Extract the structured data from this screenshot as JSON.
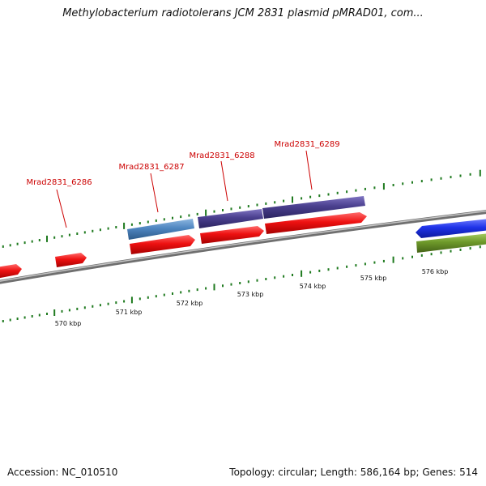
{
  "title": "Methylobacterium radiotolerans JCM 2831 plasmid pMRAD01, com...",
  "footer": {
    "accession": "Accession: NC_010510",
    "summary": "Topology: circular; Length: 586,164 bp; Genes: 514"
  },
  "axis": {
    "unit": "kbp",
    "ticks": [
      570,
      571,
      572,
      573,
      574,
      575,
      576
    ]
  },
  "gene_labels": [
    "Mrad2831_6286",
    "Mrad2831_6287",
    "Mrad2831_6288",
    "Mrad2831_6289"
  ],
  "colors": {
    "red": "#ee1111",
    "steel_blue": "#4f86c0",
    "purple": "#4a3f8e",
    "blue": "#1e32e8",
    "olive": "#6e9a2a",
    "backbone": "#888888",
    "tick_green": "#1f7a1f",
    "label_red": "#cc0000"
  }
}
